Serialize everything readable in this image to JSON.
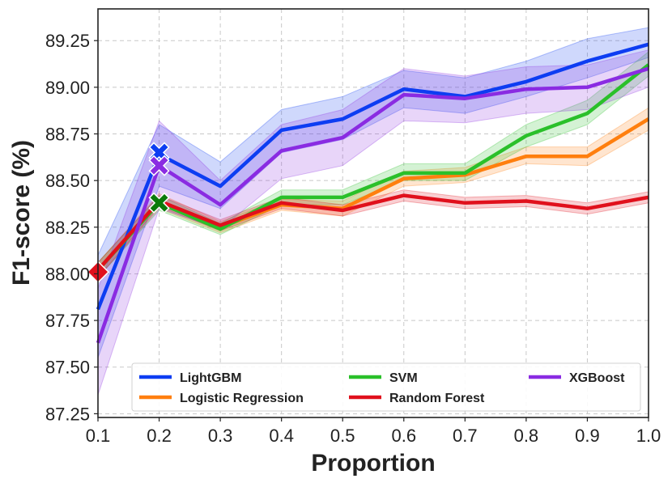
{
  "chart_data": {
    "type": "line",
    "xlabel": "Proportion",
    "ylabel": "F1-score (%)",
    "xlim": [
      0.1,
      1.0
    ],
    "ylim": [
      87.23,
      89.42
    ],
    "x": [
      0.1,
      0.2,
      0.3,
      0.4,
      0.5,
      0.6,
      0.7,
      0.8,
      0.9,
      1.0
    ],
    "x_tick_labels": [
      "0.1",
      "0.2",
      "0.3",
      "0.4",
      "0.5",
      "0.6",
      "0.7",
      "0.8",
      "0.9",
      "1.0"
    ],
    "y_ticks": [
      87.25,
      87.5,
      87.75,
      88.0,
      88.25,
      88.5,
      88.75,
      89.0,
      89.25
    ],
    "y_tick_labels": [
      "87.25",
      "87.50",
      "87.75",
      "88.00",
      "88.25",
      "88.50",
      "88.75",
      "89.00",
      "89.25"
    ],
    "grid": true,
    "legend_position": "lower-center",
    "series": [
      {
        "name": "LightGBM",
        "color": "#0d3df2",
        "values": [
          87.81,
          88.64,
          88.47,
          88.77,
          88.83,
          88.99,
          88.95,
          89.03,
          89.14,
          89.23
        ],
        "lower": [
          87.55,
          88.47,
          88.35,
          88.65,
          88.72,
          88.89,
          88.86,
          88.95,
          89.05,
          89.16
        ],
        "upper": [
          88.1,
          88.8,
          88.6,
          88.88,
          88.95,
          89.09,
          89.05,
          89.14,
          89.26,
          89.32
        ]
      },
      {
        "name": "Logistic Regression",
        "color": "#ff7f0e",
        "values": [
          88.02,
          88.39,
          88.25,
          88.37,
          88.35,
          88.51,
          88.53,
          88.63,
          88.63,
          88.83
        ],
        "lower": [
          87.98,
          88.35,
          88.22,
          88.34,
          88.31,
          88.47,
          88.49,
          88.59,
          88.58,
          88.77
        ],
        "upper": [
          88.06,
          88.43,
          88.28,
          88.4,
          88.39,
          88.55,
          88.57,
          88.68,
          88.68,
          88.89
        ]
      },
      {
        "name": "SVM",
        "color": "#2ac02a",
        "values": [
          88.02,
          88.38,
          88.24,
          88.41,
          88.41,
          88.54,
          88.54,
          88.74,
          88.86,
          89.12
        ],
        "lower": [
          87.98,
          88.34,
          88.21,
          88.37,
          88.37,
          88.5,
          88.5,
          88.68,
          88.8,
          89.06
        ],
        "upper": [
          88.06,
          88.42,
          88.27,
          88.45,
          88.45,
          88.59,
          88.59,
          88.8,
          88.93,
          89.19
        ]
      },
      {
        "name": "Random Forest",
        "color": "#e0101c",
        "values": [
          88.02,
          88.39,
          88.26,
          88.38,
          88.34,
          88.42,
          88.38,
          88.39,
          88.35,
          88.41
        ],
        "lower": [
          87.98,
          88.36,
          88.23,
          88.35,
          88.31,
          88.39,
          88.35,
          88.36,
          88.32,
          88.38
        ],
        "upper": [
          88.06,
          88.42,
          88.29,
          88.41,
          88.37,
          88.45,
          88.41,
          88.42,
          88.38,
          88.44
        ]
      },
      {
        "name": "XGBoost",
        "color": "#8a2be2",
        "values": [
          87.63,
          88.58,
          88.37,
          88.66,
          88.73,
          88.96,
          88.94,
          88.99,
          89.0,
          89.1
        ],
        "lower": [
          87.35,
          88.35,
          88.24,
          88.51,
          88.58,
          88.82,
          88.81,
          88.86,
          88.88,
          89.0
        ],
        "upper": [
          87.92,
          88.82,
          88.5,
          88.8,
          88.88,
          89.1,
          89.06,
          89.11,
          89.12,
          89.2
        ]
      }
    ],
    "markers": [
      {
        "series": "LightGBM",
        "x": 0.2,
        "y": 88.65,
        "shape": "X",
        "color": "#0d3df2"
      },
      {
        "series": "XGBoost",
        "x": 0.2,
        "y": 88.58,
        "shape": "X",
        "color": "#8a2be2"
      },
      {
        "series": "SVM",
        "x": 0.2,
        "y": 88.38,
        "shape": "X",
        "color": "#0a7a0a"
      },
      {
        "series": "Random Forest",
        "x": 0.1,
        "y": 88.01,
        "shape": "diamond",
        "color": "#e0101c"
      }
    ],
    "legend_columns": 3,
    "legend_order": [
      "LightGBM",
      "SVM",
      "XGBoost",
      "Logistic Regression",
      "Random Forest"
    ]
  }
}
